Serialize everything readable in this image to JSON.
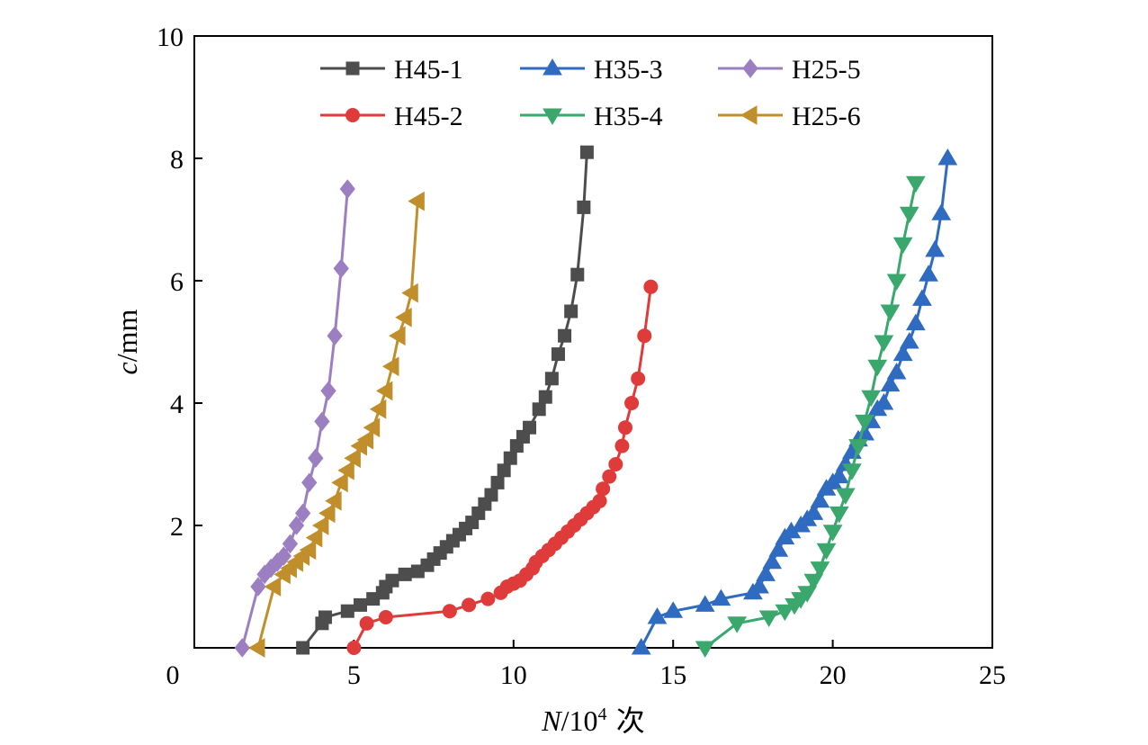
{
  "chart_data": {
    "type": "line",
    "xlabel": {
      "italic": "N",
      "rest": "/10",
      "sup": "4",
      "unit": " 次"
    },
    "ylabel": {
      "italic": "c",
      "rest": "/mm"
    },
    "xlim": [
      0,
      25
    ],
    "ylim": [
      0,
      10
    ],
    "xticks": [
      0,
      5,
      10,
      15,
      20,
      25
    ],
    "yticks": [
      2,
      4,
      6,
      8,
      10
    ],
    "origin_label": "0",
    "grid": false,
    "legend": {
      "placement": "top",
      "columns": 3
    },
    "series": [
      {
        "name": "H45-1",
        "color": "#4d4d4d",
        "marker": "square",
        "x": [
          3.4,
          4.0,
          4.1,
          4.8,
          5.2,
          5.6,
          5.9,
          6.0,
          6.2,
          6.6,
          7.0,
          7.3,
          7.5,
          7.7,
          7.9,
          8.1,
          8.3,
          8.5,
          8.7,
          8.9,
          9.1,
          9.3,
          9.5,
          9.7,
          9.9,
          10.1,
          10.3,
          10.5,
          10.8,
          11.0,
          11.2,
          11.4,
          11.6,
          11.8,
          12.0,
          12.2,
          12.3
        ],
        "y": [
          0.0,
          0.4,
          0.5,
          0.6,
          0.7,
          0.8,
          0.9,
          1.0,
          1.1,
          1.2,
          1.25,
          1.35,
          1.45,
          1.55,
          1.65,
          1.75,
          1.85,
          1.95,
          2.05,
          2.2,
          2.35,
          2.5,
          2.7,
          2.9,
          3.1,
          3.3,
          3.45,
          3.6,
          3.9,
          4.1,
          4.4,
          4.8,
          5.1,
          5.5,
          6.1,
          7.2,
          8.1
        ]
      },
      {
        "name": "H45-2",
        "color": "#e03b3b",
        "marker": "circle",
        "x": [
          5.0,
          5.4,
          6.0,
          8.0,
          8.6,
          9.2,
          9.6,
          9.8,
          10.0,
          10.2,
          10.4,
          10.6,
          10.7,
          10.9,
          11.1,
          11.3,
          11.5,
          11.7,
          11.9,
          12.1,
          12.3,
          12.5,
          12.7,
          12.8,
          13.0,
          13.2,
          13.4,
          13.5,
          13.7,
          13.9,
          14.1,
          14.3
        ],
        "y": [
          0.0,
          0.4,
          0.5,
          0.6,
          0.7,
          0.8,
          0.9,
          1.0,
          1.05,
          1.1,
          1.2,
          1.3,
          1.4,
          1.5,
          1.6,
          1.7,
          1.8,
          1.9,
          2.0,
          2.1,
          2.2,
          2.3,
          2.4,
          2.6,
          2.8,
          3.0,
          3.3,
          3.6,
          4.0,
          4.4,
          5.1,
          5.9
        ]
      },
      {
        "name": "H35-3",
        "color": "#2f6bc0",
        "marker": "triangle-up",
        "x": [
          14.0,
          14.5,
          15.0,
          16.0,
          16.5,
          17.5,
          17.7,
          17.9,
          18.1,
          18.3,
          18.5,
          18.7,
          19.0,
          19.2,
          19.4,
          19.6,
          19.8,
          20.0,
          20.2,
          20.4,
          20.6,
          20.8,
          21.0,
          21.2,
          21.4,
          21.6,
          21.8,
          22.0,
          22.2,
          22.4,
          22.6,
          22.8,
          23.0,
          23.2,
          23.4,
          23.6
        ],
        "y": [
          0.0,
          0.5,
          0.6,
          0.7,
          0.8,
          0.9,
          1.0,
          1.2,
          1.4,
          1.6,
          1.8,
          1.9,
          2.0,
          2.1,
          2.2,
          2.4,
          2.6,
          2.7,
          2.8,
          3.0,
          3.2,
          3.4,
          3.5,
          3.7,
          3.9,
          4.0,
          4.3,
          4.5,
          4.8,
          5.0,
          5.3,
          5.7,
          6.1,
          6.5,
          7.1,
          8.0
        ]
      },
      {
        "name": "H35-4",
        "color": "#3aa76d",
        "marker": "triangle-down",
        "x": [
          16.0,
          17.0,
          18.0,
          18.5,
          18.8,
          19.0,
          19.2,
          19.4,
          19.6,
          19.8,
          20.0,
          20.2,
          20.4,
          20.6,
          20.8,
          21.0,
          21.2,
          21.4,
          21.6,
          21.8,
          22.0,
          22.2,
          22.4,
          22.6
        ],
        "y": [
          0.0,
          0.4,
          0.5,
          0.6,
          0.7,
          0.8,
          0.9,
          1.1,
          1.3,
          1.6,
          1.9,
          2.2,
          2.5,
          2.9,
          3.3,
          3.7,
          4.1,
          4.6,
          5.0,
          5.5,
          6.0,
          6.6,
          7.1,
          7.6
        ]
      },
      {
        "name": "H25-5",
        "color": "#9b7fc0",
        "marker": "diamond",
        "x": [
          1.5,
          2.0,
          2.2,
          2.4,
          2.6,
          2.8,
          3.0,
          3.2,
          3.4,
          3.6,
          3.8,
          4.0,
          4.2,
          4.4,
          4.6,
          4.8
        ],
        "y": [
          0.0,
          1.0,
          1.2,
          1.3,
          1.4,
          1.5,
          1.7,
          2.0,
          2.2,
          2.7,
          3.1,
          3.7,
          4.2,
          5.1,
          6.2,
          7.5
        ]
      },
      {
        "name": "H25-6",
        "color": "#c08f2c",
        "marker": "triangle-left",
        "x": [
          2.0,
          2.5,
          2.8,
          3.0,
          3.2,
          3.4,
          3.6,
          3.8,
          4.0,
          4.2,
          4.4,
          4.6,
          4.8,
          5.0,
          5.2,
          5.4,
          5.6,
          5.8,
          6.0,
          6.2,
          6.4,
          6.6,
          6.8,
          7.0
        ],
        "y": [
          0.0,
          1.0,
          1.2,
          1.3,
          1.4,
          1.5,
          1.6,
          1.8,
          2.0,
          2.2,
          2.4,
          2.7,
          2.9,
          3.1,
          3.3,
          3.4,
          3.6,
          3.9,
          4.2,
          4.6,
          5.1,
          5.4,
          5.8,
          7.3
        ]
      }
    ]
  }
}
